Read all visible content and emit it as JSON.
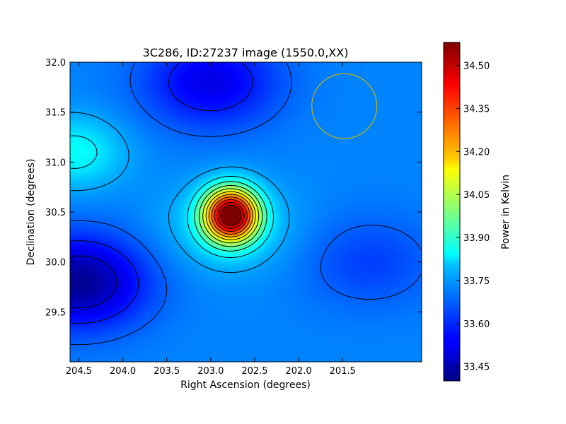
{
  "chart_data": {
    "type": "heatmap",
    "title": "3C286, ID:27237 image (1550.0,XX)",
    "xlabel": "Right Ascension (degrees)",
    "ylabel": "Declination (degrees)",
    "colorbar_label": "Power in Kelvin",
    "xlim": [
      204.6,
      200.6
    ],
    "ylim": [
      29.0,
      32.0
    ],
    "x_ticks": [
      204.5,
      204.0,
      203.5,
      203.0,
      202.5,
      202.0,
      201.5
    ],
    "x_tick_labels": [
      "204.5",
      "204.0",
      "203.5",
      "203.0",
      "202.5",
      "202.0",
      "201.5"
    ],
    "y_ticks": [
      29.5,
      30.0,
      30.5,
      31.0,
      31.5,
      32.0
    ],
    "y_tick_labels": [
      "29.5",
      "30.0",
      "30.5",
      "31.0",
      "31.5",
      "32.0"
    ],
    "colorbar_range": [
      33.4,
      34.58
    ],
    "colorbar_ticks": [
      33.45,
      33.6,
      33.75,
      33.9,
      34.05,
      34.2,
      34.35,
      34.5
    ],
    "colorbar_tick_labels": [
      "33.45",
      "33.60",
      "33.75",
      "33.90",
      "34.05",
      "34.20",
      "34.35",
      "34.50"
    ],
    "colormap": "jet",
    "peak": {
      "ra": 202.77,
      "dec": 30.47,
      "value": 34.57
    },
    "features": [
      {
        "kind": "minimum",
        "ra": 204.5,
        "dec": 29.8,
        "value": 33.42
      },
      {
        "kind": "minimum",
        "ra": 203.0,
        "dec": 31.8,
        "value": 33.52
      },
      {
        "kind": "minimum",
        "ra": 201.2,
        "dec": 30.0,
        "value": 33.62
      },
      {
        "kind": "maximum",
        "ra": 204.55,
        "dec": 31.1,
        "value": 33.85
      }
    ],
    "background_value": 33.7,
    "grid": false,
    "beam_circle": {
      "ra": 201.48,
      "dec": 31.56,
      "radius_deg": 0.37,
      "color": "#c8b400"
    },
    "contour_color": "#000000"
  }
}
